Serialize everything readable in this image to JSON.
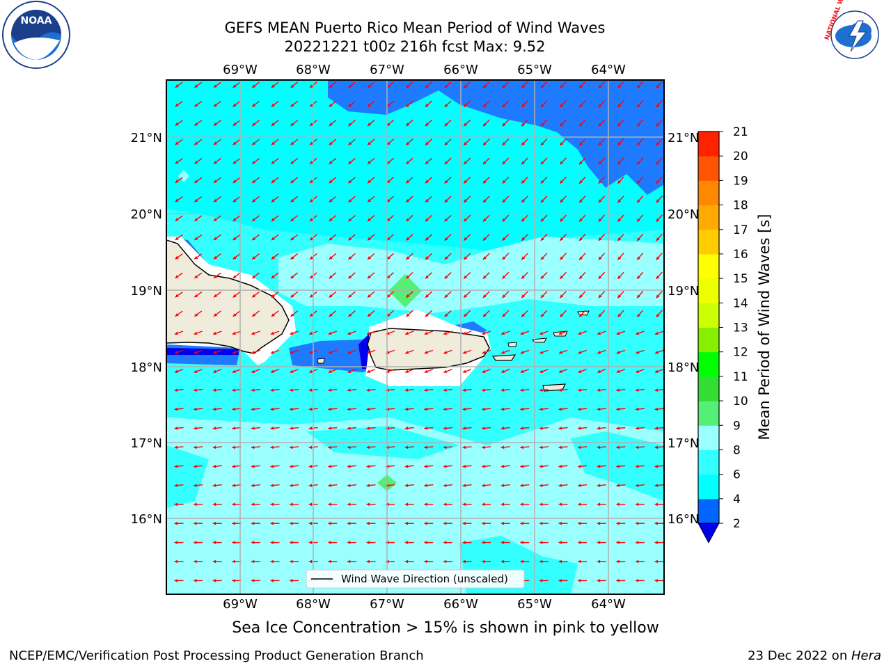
{
  "header": {
    "title_line1": "GEFS MEAN Puerto Rico Mean Period of Wind Waves",
    "title_line2": "20221221 t00z 216h fcst   Max: 9.52"
  },
  "map": {
    "lon_labels": [
      "69°W",
      "68°W",
      "67°W",
      "66°W",
      "65°W",
      "64°W"
    ],
    "lat_labels": [
      "21°N",
      "20°N",
      "19°N",
      "18°N",
      "17°N",
      "16°N"
    ],
    "legend_label": "Wind Wave Direction (unscaled)",
    "arrow_color": "#ff0000",
    "land_color": "#efecdc"
  },
  "colorbar": {
    "label": "Mean Period of Wind Waves [s]",
    "ticks": [
      "2",
      "4",
      "6",
      "8",
      "9",
      "10",
      "11",
      "12",
      "13",
      "14",
      "15",
      "16",
      "17",
      "18",
      "19",
      "20",
      "21"
    ],
    "colors": [
      "#0066ff",
      "#00ffff",
      "#33ffff",
      "#99ffff",
      "#55ee77",
      "#33dd33",
      "#00ff00",
      "#88ee00",
      "#ccff00",
      "#eeff00",
      "#ffff00",
      "#ffcc00",
      "#ffaa00",
      "#ff8800",
      "#ff5500",
      "#ff2200"
    ],
    "extend_color": "#0000ee"
  },
  "footer": {
    "note": "Sea Ice Concentration > 15% is shown in pink to yellow",
    "credit_left": "NCEP/EMC/Verification Post Processing Product Generation Branch",
    "date_prefix": "23 Dec 2022 on ",
    "host": "Hera"
  },
  "logos": {
    "noaa_text": "NOAA",
    "nws_text": "NATIONAL WEATHER SERVICE"
  }
}
